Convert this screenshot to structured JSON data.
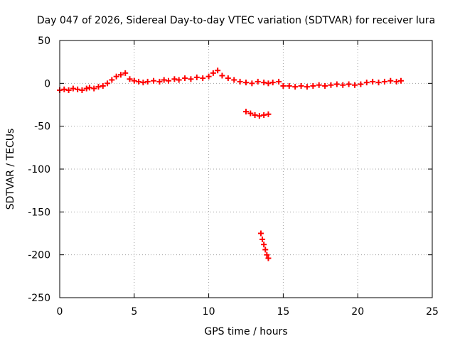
{
  "chart_data": {
    "type": "scatter",
    "title": "Day 047 of 2026, Sidereal Day-to-day VTEC variation (SDTVAR) for receiver lura",
    "xlabel": "GPS time / hours",
    "ylabel": "SDTVAR / TECUs",
    "xlim": [
      0,
      25
    ],
    "ylim": [
      -250,
      50
    ],
    "xticks": [
      0,
      5,
      10,
      15,
      20,
      25
    ],
    "yticks": [
      -250,
      -200,
      -150,
      -100,
      -50,
      0,
      50
    ],
    "xtick_labels": [
      "0",
      "5",
      "10",
      "15",
      "20",
      "25"
    ],
    "ytick_labels": [
      "-250",
      "-200",
      "-150",
      "-100",
      "-50",
      "0",
      "50"
    ],
    "grid": true,
    "series_color": "#ff0000",
    "series": [
      {
        "points": [
          [
            0.0,
            -8
          ],
          [
            0.3,
            -7
          ],
          [
            0.6,
            -8
          ],
          [
            0.9,
            -6
          ],
          [
            1.2,
            -7
          ],
          [
            1.5,
            -8
          ],
          [
            1.8,
            -6
          ],
          [
            2.0,
            -5
          ],
          [
            2.3,
            -6
          ],
          [
            2.6,
            -4
          ],
          [
            2.9,
            -3
          ],
          [
            3.2,
            0
          ],
          [
            3.5,
            4
          ],
          [
            3.8,
            8
          ],
          [
            4.1,
            10
          ],
          [
            4.4,
            12
          ],
          [
            4.7,
            5
          ],
          [
            5.0,
            3
          ],
          [
            5.3,
            2
          ],
          [
            5.6,
            1
          ],
          [
            5.9,
            2
          ],
          [
            6.3,
            3
          ],
          [
            6.7,
            2
          ],
          [
            7.0,
            4
          ],
          [
            7.3,
            3
          ],
          [
            7.7,
            5
          ],
          [
            8.0,
            4
          ],
          [
            8.4,
            6
          ],
          [
            8.8,
            5
          ],
          [
            9.2,
            7
          ],
          [
            9.6,
            6
          ],
          [
            10.0,
            8
          ],
          [
            10.3,
            12
          ],
          [
            10.6,
            15
          ],
          [
            10.9,
            9
          ],
          [
            11.3,
            6
          ],
          [
            11.7,
            4
          ],
          [
            12.1,
            2
          ],
          [
            12.5,
            1
          ],
          [
            12.9,
            0
          ],
          [
            13.3,
            2
          ],
          [
            13.7,
            1
          ],
          [
            14.0,
            0
          ],
          [
            14.3,
            1
          ],
          [
            14.7,
            2
          ],
          [
            15.0,
            -3
          ],
          [
            15.4,
            -3
          ],
          [
            15.8,
            -4
          ],
          [
            16.2,
            -3
          ],
          [
            16.6,
            -4
          ],
          [
            17.0,
            -3
          ],
          [
            17.4,
            -2
          ],
          [
            17.8,
            -3
          ],
          [
            18.2,
            -2
          ],
          [
            18.6,
            -1
          ],
          [
            19.0,
            -2
          ],
          [
            19.4,
            -1
          ],
          [
            19.8,
            -2
          ],
          [
            20.2,
            -1
          ],
          [
            20.6,
            1
          ],
          [
            21.0,
            2
          ],
          [
            21.4,
            1
          ],
          [
            21.8,
            2
          ],
          [
            22.2,
            3
          ],
          [
            22.6,
            2
          ],
          [
            22.9,
            3
          ],
          [
            12.5,
            -33
          ],
          [
            12.8,
            -35
          ],
          [
            13.1,
            -37
          ],
          [
            13.4,
            -38
          ],
          [
            13.7,
            -37
          ],
          [
            14.0,
            -36
          ],
          [
            13.5,
            -175
          ],
          [
            13.6,
            -182
          ],
          [
            13.7,
            -188
          ],
          [
            13.8,
            -194
          ],
          [
            13.9,
            -200
          ],
          [
            14.0,
            -204
          ]
        ]
      }
    ]
  }
}
